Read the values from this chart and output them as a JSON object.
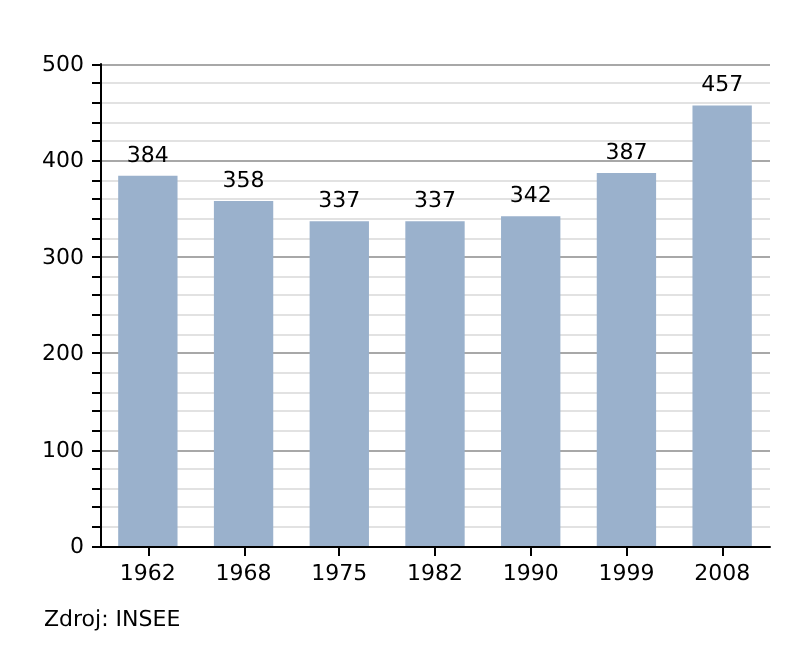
{
  "chart_data": {
    "type": "bar",
    "categories": [
      "1962",
      "1968",
      "1975",
      "1982",
      "1990",
      "1999",
      "2008"
    ],
    "values": [
      384,
      358,
      337,
      337,
      342,
      387,
      457
    ],
    "color": "#9ab1cc",
    "data_labels": true,
    "ylim": [
      0,
      500
    ],
    "yticks": [
      0,
      {
        "value": 20,
        "label": null
      },
      {
        "value": 40,
        "label": null
      },
      {
        "value": 60,
        "label": null
      },
      {
        "value": 80,
        "label": null
      },
      100,
      {
        "value": 120,
        "label": null
      },
      {
        "value": 140,
        "label": null
      },
      {
        "value": 160,
        "label": null
      },
      {
        "value": 180,
        "label": null
      },
      200,
      {
        "value": 220,
        "label": null
      },
      {
        "value": 240,
        "label": null
      },
      {
        "value": 260,
        "label": null
      },
      {
        "value": 280,
        "label": null
      },
      300,
      {
        "value": 320,
        "label": null
      },
      {
        "value": 340,
        "label": null
      },
      {
        "value": 360,
        "label": null
      },
      {
        "value": 380,
        "label": null
      },
      400,
      {
        "value": 420,
        "label": null
      },
      {
        "value": 440,
        "label": null
      },
      {
        "value": 460,
        "label": null
      },
      {
        "value": 480,
        "label": null
      },
      500
    ],
    "grid": "y",
    "annotations": [
      "Zdroj: INSEE"
    ]
  }
}
